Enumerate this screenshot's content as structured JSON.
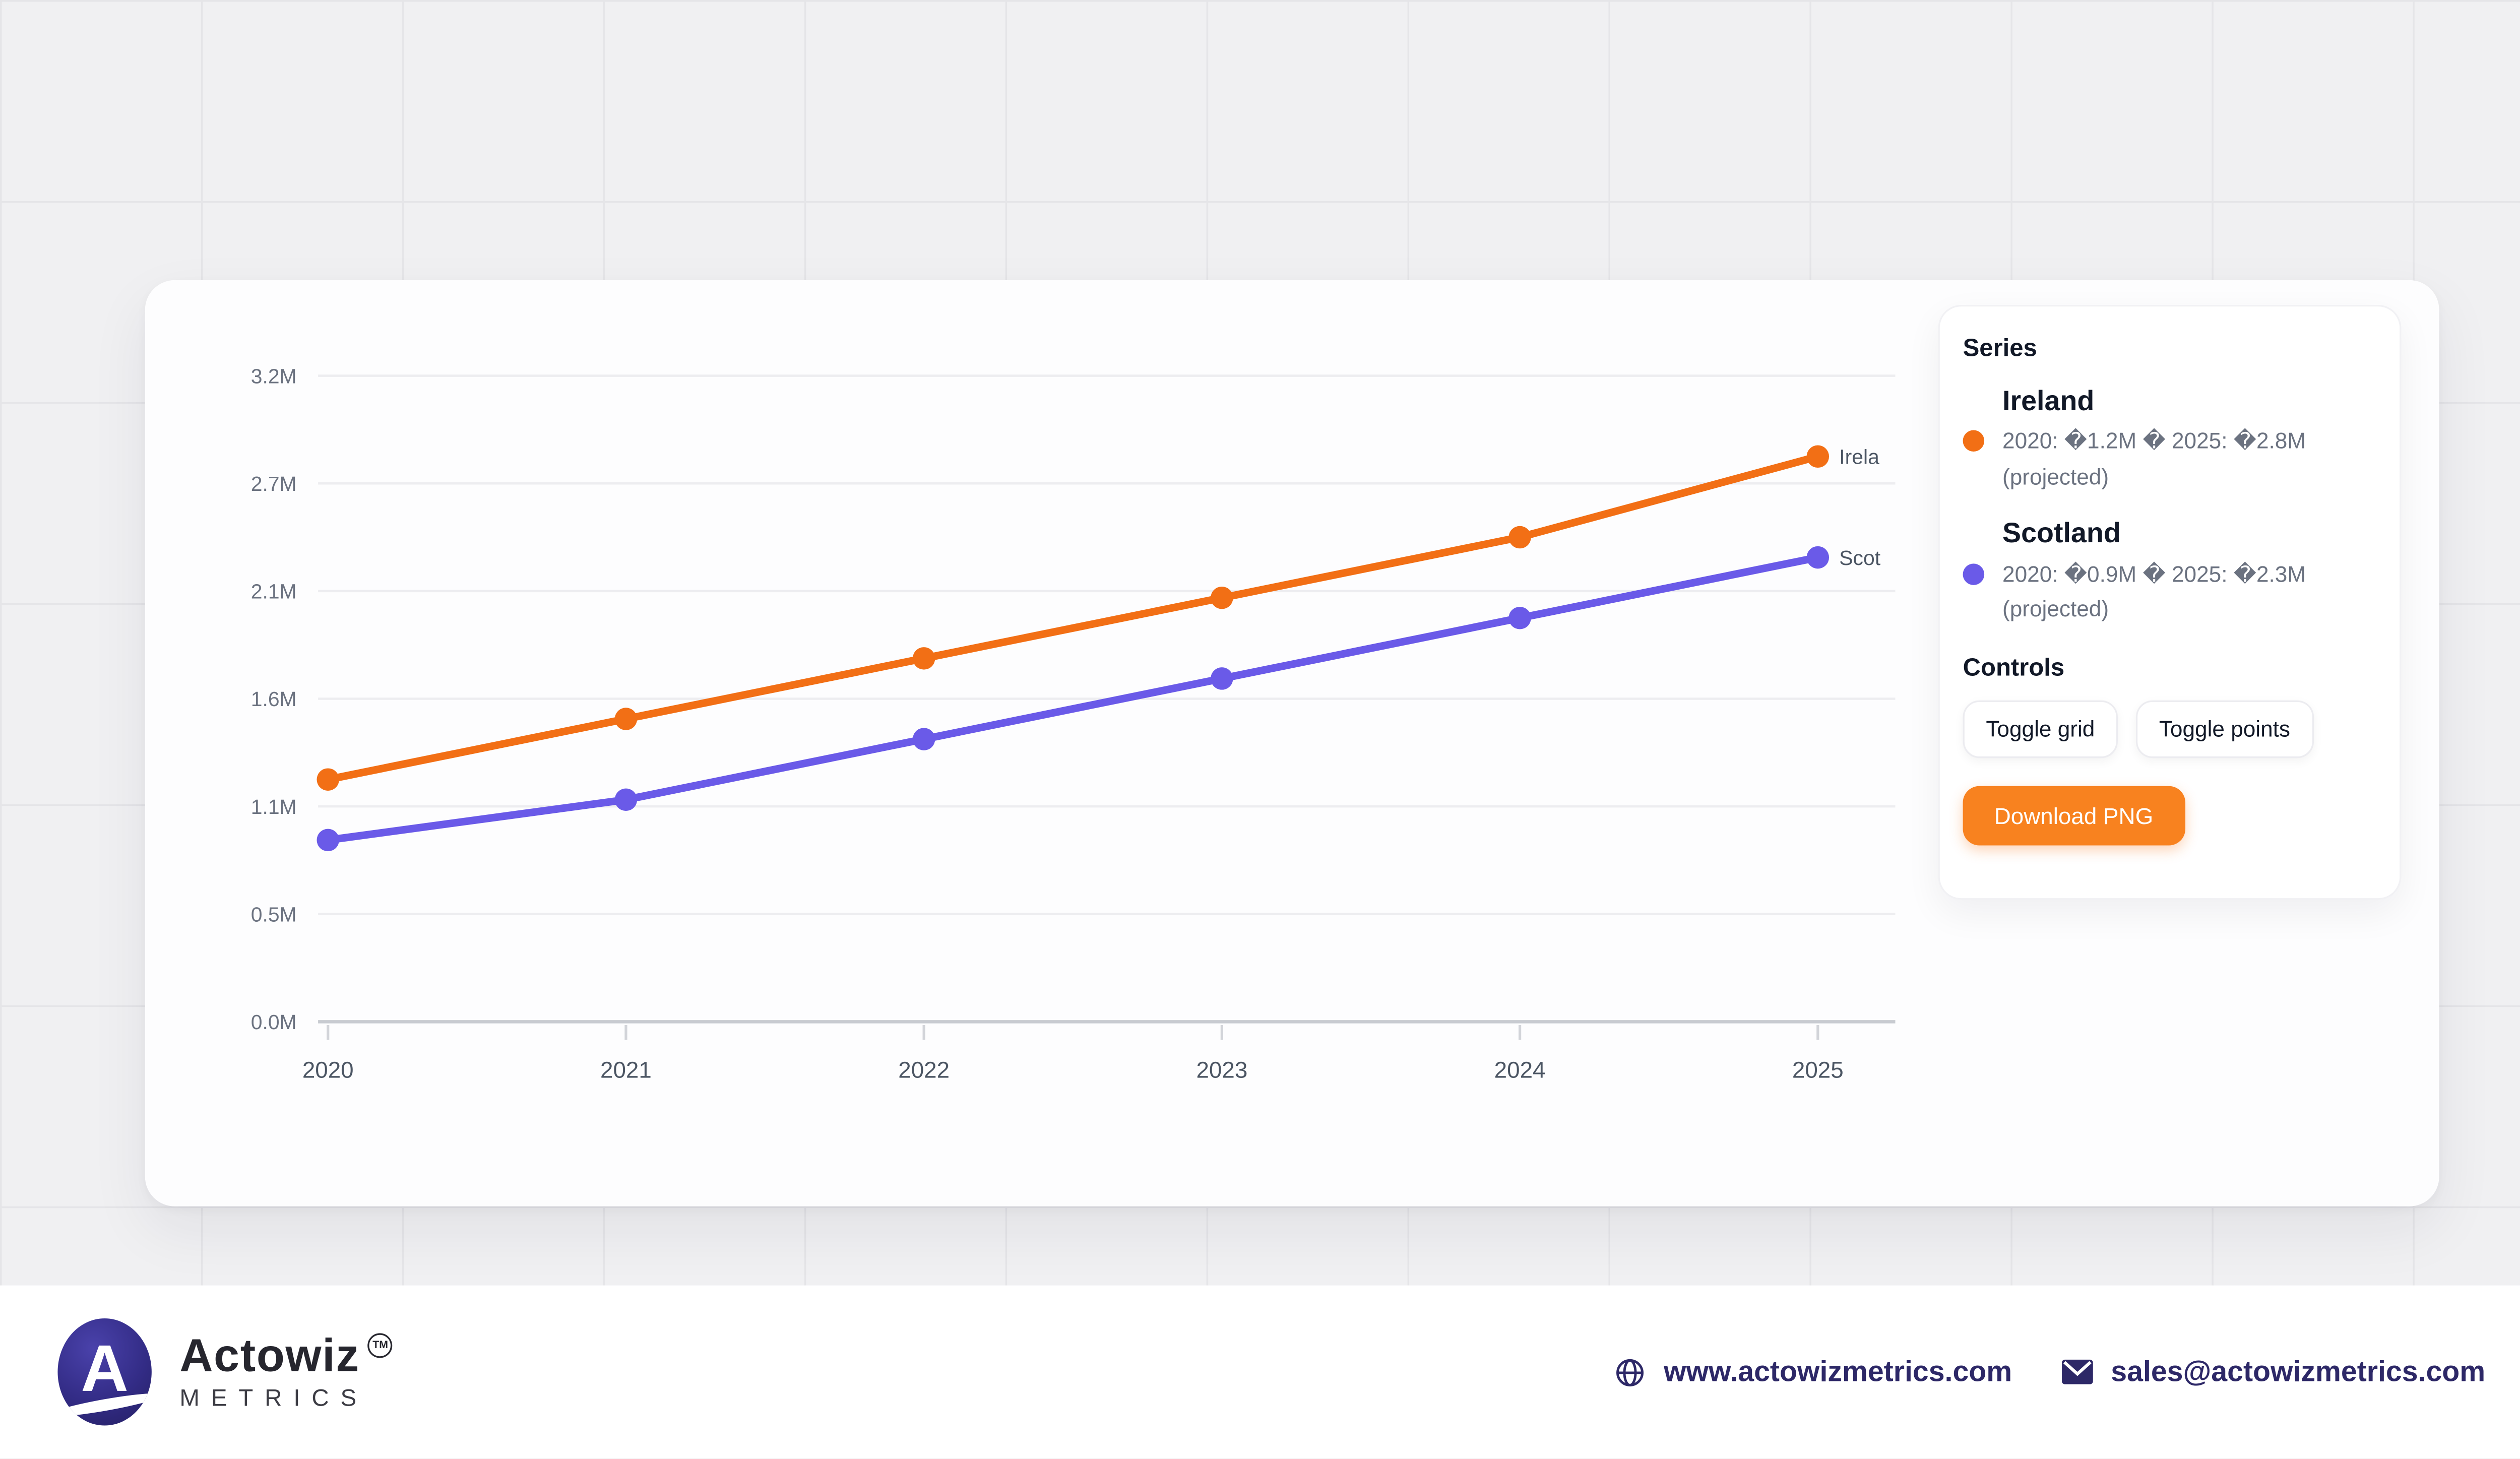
{
  "chart_data": {
    "type": "line",
    "x_labels": [
      "2020",
      "2021",
      "2022",
      "2023",
      "2024",
      "2025"
    ],
    "y_ticks": [
      "0.0M",
      "0.5M",
      "1.1M",
      "1.6M",
      "2.1M",
      "2.7M",
      "3.2M"
    ],
    "ylim": [
      0,
      3.2
    ],
    "grid": "horizontal",
    "legend_position": "right-panel",
    "series": [
      {
        "name": "Ireland",
        "color": "#f26f15",
        "values": [
          1.2,
          1.5,
          1.8,
          2.1,
          2.4,
          2.8
        ],
        "end_label": "Irela"
      },
      {
        "name": "Scotland",
        "color": "#6a5ae8",
        "values": [
          0.9,
          1.1,
          1.4,
          1.7,
          2.0,
          2.3
        ],
        "end_label": "Scot"
      }
    ]
  },
  "panel": {
    "series_heading": "Series",
    "items": [
      {
        "name": "Ireland",
        "color": "#f26f15",
        "detail": "2020: �1.2M � 2025: �2.8M (projected)"
      },
      {
        "name": "Scotland",
        "color": "#6a5ae8",
        "detail": "2020: �0.9M � 2025: �2.3M (projected)"
      }
    ],
    "controls_heading": "Controls",
    "buttons": [
      {
        "label": "Toggle grid"
      },
      {
        "label": "Toggle points"
      }
    ],
    "download_label": "Download PNG",
    "accent": "#f8821f"
  },
  "footer": {
    "brand": "Actowiz",
    "brand_sub": "METRICS",
    "tm": "TM",
    "logo_letter": "A",
    "website": "www.actowizmetrics.com",
    "email": "sales@actowizmetrics.com",
    "text_color": "#2d2867"
  }
}
